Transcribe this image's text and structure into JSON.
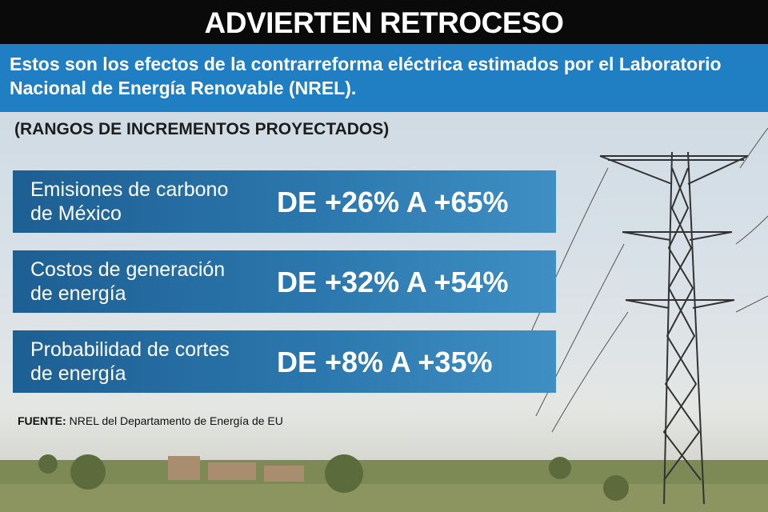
{
  "header": {
    "title": "ADVIERTEN RETROCESO"
  },
  "subtitle": "Estos son los efectos de la contrarreforma eléctrica estimados por el Laboratorio Nacional de Energía Renovable (NREL).",
  "section_title": "(RANGOS DE INCREMENTOS PROYECTADOS)",
  "rows": [
    {
      "label": "Emisiones de carbono de México",
      "range": "DE +26% A +65%"
    },
    {
      "label": "Costos de generación de energía",
      "range": "DE +32% A +54%"
    },
    {
      "label": "Probabilidad de cortes de energía",
      "range": "DE +8% A +35%"
    }
  ],
  "source": {
    "label": "FUENTE:",
    "text": "NREL del Departamento de Energía de EU"
  }
}
